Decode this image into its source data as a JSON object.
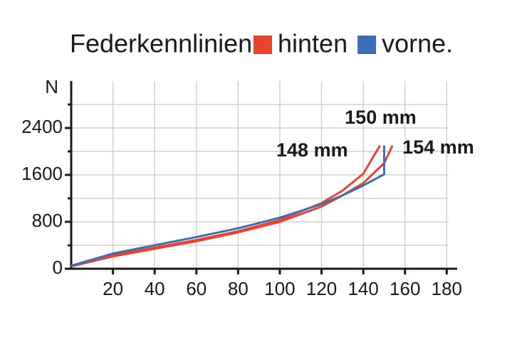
{
  "chart_data": {
    "type": "line",
    "title": "Federkennlinien:",
    "y_label": "N",
    "xlim": [
      0,
      185
    ],
    "xticks": [
      20,
      40,
      60,
      80,
      100,
      120,
      140,
      160,
      180
    ],
    "ylim": [
      0,
      3200
    ],
    "yticks": [
      0,
      800,
      1600,
      2400
    ],
    "y_minor_ticks": [
      400,
      1200,
      2000,
      2800
    ],
    "grid": true,
    "series": [
      {
        "name": "hinten",
        "color": "#e8432e",
        "curves": [
          {
            "label": "148 mm",
            "x": [
              0,
              20,
              40,
              60,
              80,
              100,
              120,
              130,
              140,
              148
            ],
            "values": [
              40,
              230,
              360,
              490,
              640,
              830,
              1120,
              1330,
              1620,
              2100
            ]
          },
          {
            "label": "154 mm",
            "x": [
              0,
              20,
              40,
              60,
              80,
              100,
              120,
              130,
              140,
              150,
              154
            ],
            "values": [
              40,
              210,
              340,
              470,
              620,
              800,
              1060,
              1250,
              1460,
              1800,
              2100
            ]
          }
        ]
      },
      {
        "name": "vorne.",
        "color": "#3a6fb7",
        "curves": [
          {
            "label": "150 mm",
            "x": [
              0,
              20,
              40,
              60,
              80,
              100,
              120,
              130,
              140,
              150,
              150
            ],
            "values": [
              50,
              260,
              400,
              540,
              690,
              870,
              1100,
              1250,
              1420,
              1610,
              2100
            ]
          }
        ]
      }
    ]
  }
}
